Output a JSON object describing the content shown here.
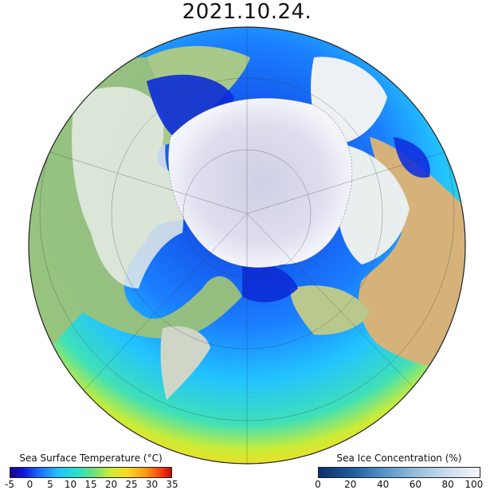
{
  "title": "2021.10.24.",
  "sst_colorbar": {
    "label": "Sea Surface Temperature (°C)",
    "ticks": [
      "-5",
      "0",
      "5",
      "10",
      "15",
      "20",
      "25",
      "30",
      "35"
    ]
  },
  "ice_colorbar": {
    "label": "Sea Ice Concentration (%)",
    "ticks": [
      "0",
      "20",
      "40",
      "60",
      "80",
      "100"
    ]
  },
  "colors": {
    "ocean_cold": "#0b2bd6",
    "ocean_mid": "#22c3ff",
    "ocean_warm": "#f8dc22",
    "ocean_hot": "#e2320f",
    "sea_ice": "#dcdceb",
    "land_green": "#8fbf6a",
    "land_brown": "#c9a46a",
    "land_snow": "#e6ece8"
  }
}
